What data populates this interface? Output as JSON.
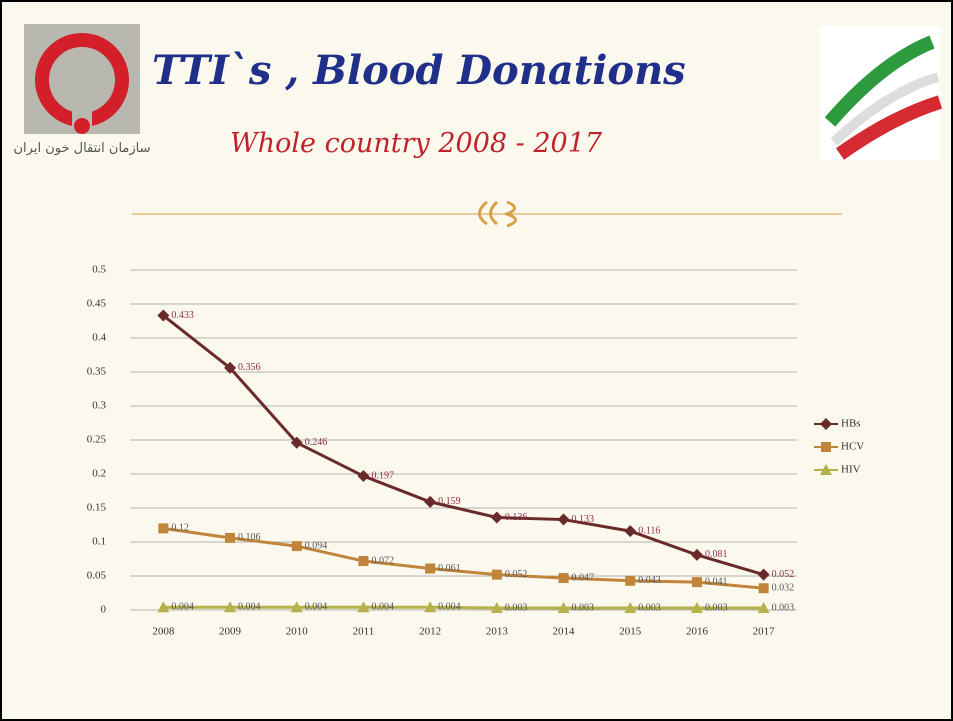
{
  "header": {
    "title": "TTI`s , Blood Donations",
    "subtitle": "Whole country  2008 - 2017",
    "logo_text": "سازمان انتقال خون ایران"
  },
  "chart_data": {
    "type": "line",
    "categories": [
      "2008",
      "2009",
      "2010",
      "2011",
      "2012",
      "2013",
      "2014",
      "2015",
      "2016",
      "2017"
    ],
    "series": [
      {
        "name": "HBs",
        "color": "#6b2a2a",
        "marker": "diamond",
        "values": [
          0.433,
          0.356,
          0.246,
          0.197,
          0.159,
          0.136,
          0.133,
          0.116,
          0.081,
          0.052
        ]
      },
      {
        "name": "HCV",
        "color": "#c0843a",
        "marker": "square",
        "values": [
          0.12,
          0.106,
          0.094,
          0.072,
          0.061,
          0.052,
          0.047,
          0.043,
          0.041,
          0.032
        ]
      },
      {
        "name": "HIV",
        "color": "#b8b04a",
        "marker": "triangle",
        "values": [
          0.004,
          0.004,
          0.004,
          0.004,
          0.004,
          0.003,
          0.003,
          0.003,
          0.003,
          0.003
        ]
      }
    ],
    "ylim": [
      0,
      0.5
    ],
    "yticks": [
      0,
      0.05,
      0.1,
      0.15,
      0.2,
      0.25,
      0.3,
      0.35,
      0.4,
      0.45,
      0.5
    ],
    "grid": true,
    "legend": "right"
  }
}
